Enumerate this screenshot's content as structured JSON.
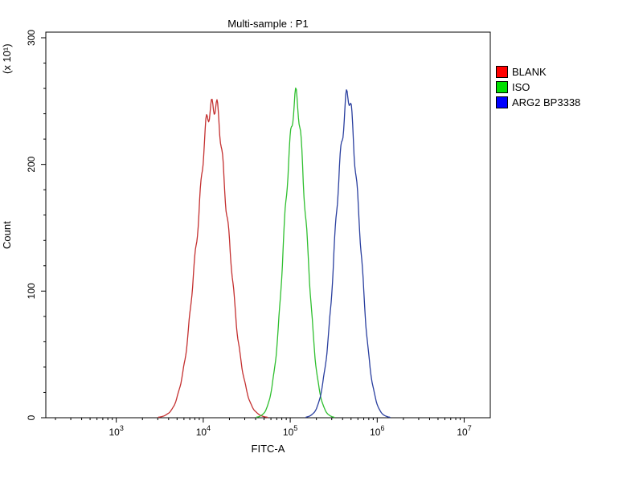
{
  "figure": {
    "background": "#ffffff"
  },
  "title": "Multi-sample : P1",
  "axis_labels": {
    "x": "FITC-A",
    "y": "Count",
    "y_unit": "(x 10¹)"
  },
  "legend": {
    "items": [
      {
        "label": "BLANK",
        "swatch": "#ff0000"
      },
      {
        "label": "ISO",
        "swatch": "#00e000"
      },
      {
        "label": "ARG2 BP3338",
        "swatch": "#0000ff"
      }
    ]
  },
  "chart_data": {
    "type": "line",
    "subtype": "flow-cytometry-histogram-overlay",
    "title": "Multi-sample : P1",
    "xlabel": "FITC-A",
    "ylabel": "Count",
    "y_unit_label": "(x 10¹)",
    "x_scale": "log10",
    "xlim_log10": [
      2.19,
      7.3
    ],
    "x_major_tick_exponents": [
      3,
      4,
      5,
      6,
      7
    ],
    "ylim": [
      0,
      300
    ],
    "y_major_ticks": [
      0,
      100,
      200,
      300
    ],
    "y_minor_step": 20,
    "grid": false,
    "legend_position": "top-right-outside",
    "series": [
      {
        "name": "BLANK",
        "color": "#c43030",
        "peak_fitc": 13000,
        "peak_log10": 4.11,
        "sigma_log10": 0.175,
        "peak_count": 250
      },
      {
        "name": "ISO",
        "color": "#2fbf2f",
        "peak_fitc": 115000,
        "peak_log10": 5.06,
        "sigma_log10": 0.125,
        "peak_count": 249
      },
      {
        "name": "ARG2 BP3338",
        "color": "#2a3f9f",
        "peak_fitc": 460000,
        "peak_log10": 5.66,
        "sigma_log10": 0.135,
        "peak_count": 251
      }
    ]
  }
}
